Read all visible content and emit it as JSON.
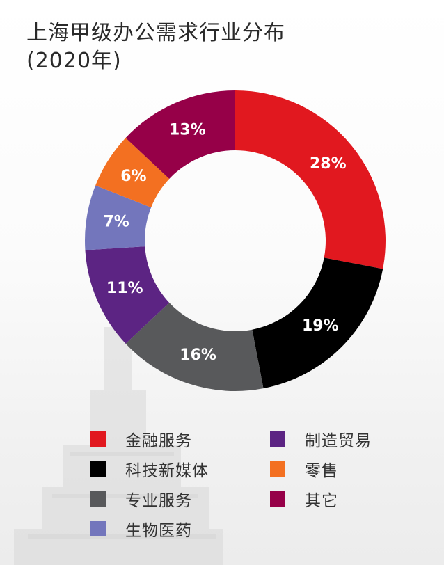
{
  "title": {
    "line1": "上海甲级办公需求行业分布",
    "line2": "(2020年)"
  },
  "chart_data": {
    "type": "pie",
    "variant": "donut",
    "title": "上海甲级办公需求行业分布 (2020年)",
    "unit": "%",
    "slices": [
      {
        "label": "金融服务",
        "value": 28,
        "display": "28%",
        "color": "#e1181f"
      },
      {
        "label": "科技新媒体",
        "value": 19,
        "display": "19%",
        "color": "#000000"
      },
      {
        "label": "专业服务",
        "value": 16,
        "display": "16%",
        "color": "#58595b"
      },
      {
        "label": "制造贸易",
        "value": 11,
        "display": "11%",
        "color": "#5c2483"
      },
      {
        "label": "生物医药",
        "value": 7,
        "display": "7%",
        "color": "#7376bc"
      },
      {
        "label": "零售",
        "value": 6,
        "display": "6%",
        "color": "#f37021"
      },
      {
        "label": "其它",
        "value": 13,
        "display": "13%",
        "color": "#960048"
      }
    ],
    "legend_position": "bottom",
    "legend": {
      "column1": [
        "金融服务",
        "科技新媒体",
        "专业服务",
        "生物医药"
      ],
      "column2": [
        "制造贸易",
        "零售",
        "其它"
      ]
    }
  }
}
